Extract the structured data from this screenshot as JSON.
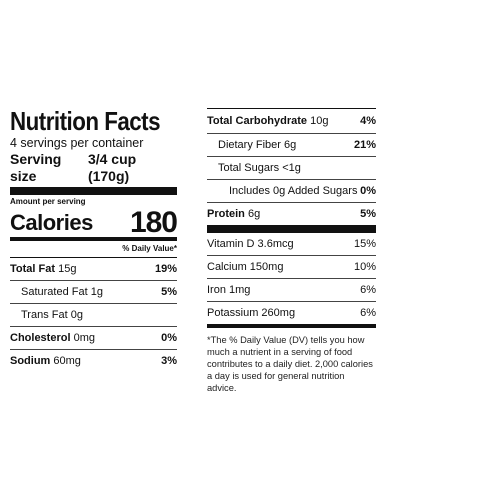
{
  "left": {
    "title": "Nutrition Facts",
    "servings": "4 servings per container",
    "serving_size_label": "Serving size",
    "serving_size_value": "3/4 cup (170g)",
    "amount_per_serving": "Amount per serving",
    "calories_label": "Calories",
    "calories_value": "180",
    "dv_header": "% Daily Value*",
    "rows": [
      {
        "name": "Total Fat",
        "amount": "15g",
        "pct": "19%"
      },
      {
        "name": "Saturated Fat",
        "amount": "1g",
        "pct": "5%"
      },
      {
        "name": "Trans Fat",
        "amount": "0g",
        "pct": ""
      },
      {
        "name": "Cholesterol",
        "amount": "0mg",
        "pct": "0%"
      },
      {
        "name": "Sodium",
        "amount": "60mg",
        "pct": "3%"
      }
    ]
  },
  "right": {
    "rows": [
      {
        "name": "Total Carbohydrate",
        "amount": "10g",
        "pct": "4%"
      },
      {
        "name": "Dietary Fiber",
        "amount": "6g",
        "pct": "21%"
      },
      {
        "name": "Total Sugars",
        "amount": "<1g",
        "pct": ""
      },
      {
        "name": "Includes",
        "amount": "0g Added Sugars",
        "pct": "0%"
      },
      {
        "name": "Protein",
        "amount": "6g",
        "pct": "5%"
      }
    ],
    "vitamins": [
      {
        "name": "Vitamin D",
        "amount": "3.6mcg",
        "pct": "15%"
      },
      {
        "name": "Calcium",
        "amount": "150mg",
        "pct": "10%"
      },
      {
        "name": "Iron",
        "amount": "1mg",
        "pct": "6%"
      },
      {
        "name": "Potassium",
        "amount": "260mg",
        "pct": "6%"
      }
    ],
    "footnote": "*The % Daily Value (DV) tells you how much a nutrient in a serving of food contributes to a daily diet. 2,000 calories a day is used for general nutrition advice."
  }
}
